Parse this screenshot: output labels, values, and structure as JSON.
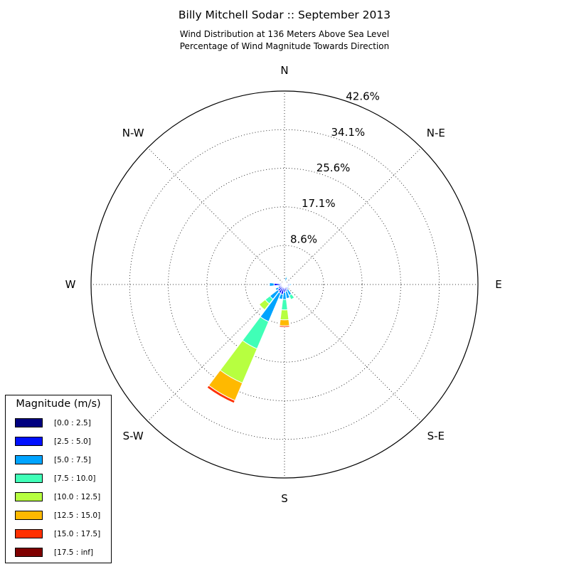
{
  "header": {
    "title": "Billy Mitchell Sodar :: September 2013",
    "subtitle_line1": "Wind Distribution at 136 Meters Above Sea Level",
    "subtitle_line2": "Percentage of Wind Magnitude Towards Direction"
  },
  "legend": {
    "title": "Magnitude (m/s)",
    "placement": "lower-left"
  },
  "chart_data": {
    "type": "windrose",
    "title": "Billy Mitchell Sodar :: September 2013",
    "subtitle": "Wind Distribution at 136 Meters Above Sea Level / Percentage of Wind Magnitude Towards Direction",
    "radial_unit": "%",
    "r_max": 42.6,
    "ring_values": [
      8.6,
      17.1,
      25.6,
      34.1,
      42.6
    ],
    "ring_labels": [
      "8.6%",
      "17.1%",
      "25.6%",
      "34.1%",
      "42.6%"
    ],
    "direction_labels": [
      {
        "label": "N",
        "angle": 0
      },
      {
        "label": "N-E",
        "angle": 45
      },
      {
        "label": "E",
        "angle": 90
      },
      {
        "label": "S-E",
        "angle": 135
      },
      {
        "label": "S",
        "angle": 180
      },
      {
        "label": "S-W",
        "angle": 225
      },
      {
        "label": "W",
        "angle": 270
      },
      {
        "label": "N-W",
        "angle": 315
      }
    ],
    "grid": true,
    "legend_placement": "lower-left",
    "bins": [
      {
        "label": "[0.0 : 2.5]",
        "color": "#00007f"
      },
      {
        "label": "[2.5 : 5.0]",
        "color": "#0010ff"
      },
      {
        "label": "[5.0 : 7.5]",
        "color": "#00a4ff"
      },
      {
        "label": "[7.5 : 10.0]",
        "color": "#40ffb7"
      },
      {
        "label": "[10.0 : 12.5]",
        "color": "#b7ff40"
      },
      {
        "label": "[12.5 : 15.0]",
        "color": "#ffb900"
      },
      {
        "label": "[15.0 : 17.5]",
        "color": "#ff3000"
      },
      {
        "label": "[17.5 : inf]",
        "color": "#7f0000"
      }
    ],
    "sector_width_deg": 15,
    "sectors": [
      {
        "direction": 0,
        "cumulative": [
          0.1,
          0.3,
          0.6,
          0.7,
          0.7,
          0.7,
          0.7,
          0.7
        ]
      },
      {
        "direction": 15,
        "cumulative": [
          0.2,
          0.8,
          1.6,
          1.8,
          1.8,
          1.8,
          1.8,
          1.8
        ]
      },
      {
        "direction": 30,
        "cumulative": [
          0.2,
          0.6,
          0.9,
          0.9,
          0.9,
          0.9,
          0.9,
          0.9
        ]
      },
      {
        "direction": 45,
        "cumulative": [
          0.1,
          0.3,
          0.4,
          0.4,
          0.4,
          0.4,
          0.4,
          0.4
        ]
      },
      {
        "direction": 60,
        "cumulative": [
          0.1,
          0.3,
          0.3,
          0.3,
          0.3,
          0.3,
          0.3,
          0.3
        ]
      },
      {
        "direction": 75,
        "cumulative": [
          0.2,
          0.5,
          0.6,
          0.6,
          0.6,
          0.6,
          0.6,
          0.6
        ]
      },
      {
        "direction": 90,
        "cumulative": [
          0.3,
          1.2,
          1.5,
          1.5,
          1.5,
          1.5,
          1.5,
          1.5
        ]
      },
      {
        "direction": 105,
        "cumulative": [
          0.3,
          1.0,
          1.2,
          1.2,
          1.2,
          1.2,
          1.2,
          1.2
        ]
      },
      {
        "direction": 120,
        "cumulative": [
          0.3,
          0.8,
          1.1,
          1.1,
          1.1,
          1.1,
          1.1,
          1.1
        ]
      },
      {
        "direction": 135,
        "cumulative": [
          0.3,
          0.9,
          1.2,
          1.2,
          1.2,
          1.2,
          1.2,
          1.2
        ]
      },
      {
        "direction": 150,
        "cumulative": [
          0.4,
          1.2,
          2.6,
          3.6,
          3.6,
          3.6,
          3.6,
          3.6
        ]
      },
      {
        "direction": 165,
        "cumulative": [
          0.5,
          1.5,
          3.1,
          3.1,
          3.1,
          3.1,
          3.1,
          3.1
        ]
      },
      {
        "direction": 180,
        "cumulative": [
          0.5,
          1.7,
          3.3,
          5.6,
          7.8,
          9.1,
          9.4,
          9.4
        ]
      },
      {
        "direction": 195,
        "cumulative": [
          0.6,
          2.2,
          3.3,
          3.3,
          3.3,
          3.3,
          3.3,
          3.3
        ]
      },
      {
        "direction": 210,
        "cumulative": [
          0.6,
          2.1,
          8.9,
          15.4,
          23.6,
          27.8,
          28.4,
          28.4
        ]
      },
      {
        "direction": 225,
        "cumulative": [
          0.5,
          1.9,
          4.1,
          5.4,
          7.1,
          7.1,
          7.1,
          7.1
        ]
      },
      {
        "direction": 240,
        "cumulative": [
          0.4,
          1.5,
          2.2,
          2.2,
          2.2,
          2.2,
          2.2,
          2.2
        ]
      },
      {
        "direction": 255,
        "cumulative": [
          0.3,
          1.0,
          1.4,
          1.4,
          1.4,
          1.4,
          1.4,
          1.4
        ]
      },
      {
        "direction": 270,
        "cumulative": [
          0.5,
          2.3,
          3.3,
          3.3,
          3.3,
          3.3,
          3.3,
          3.3
        ]
      },
      {
        "direction": 285,
        "cumulative": [
          0.3,
          1.0,
          1.1,
          1.1,
          1.1,
          1.1,
          1.1,
          1.1
        ]
      },
      {
        "direction": 300,
        "cumulative": [
          0.3,
          0.8,
          0.9,
          0.9,
          0.9,
          0.9,
          0.9,
          0.9
        ]
      },
      {
        "direction": 315,
        "cumulative": [
          0.2,
          0.5,
          0.6,
          0.6,
          0.6,
          0.6,
          0.6,
          0.6
        ]
      },
      {
        "direction": 330,
        "cumulative": [
          0.2,
          0.5,
          0.5,
          0.5,
          0.5,
          0.5,
          0.5,
          0.5
        ]
      },
      {
        "direction": 345,
        "cumulative": [
          0.1,
          0.2,
          0.3,
          0.3,
          0.3,
          0.3,
          0.3,
          0.3
        ]
      }
    ]
  }
}
